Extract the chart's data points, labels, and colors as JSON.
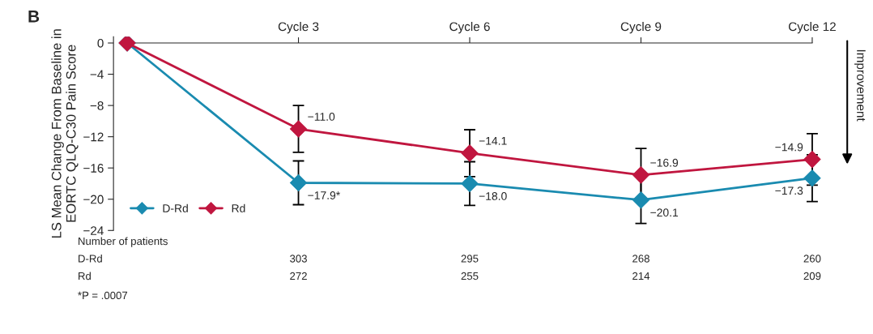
{
  "chart_data": {
    "type": "line",
    "title": "B",
    "ylabel": "LS Mean Change From Baseline in\nEORTC QLQ-C30 Pain Score",
    "categories": [
      null,
      "Cycle 3",
      "Cycle 6",
      "Cycle 9",
      "Cycle 12"
    ],
    "series": [
      {
        "name": "D-Rd",
        "color": "#1a8bb0",
        "values": [
          0,
          -17.9,
          -18.0,
          -20.1,
          -17.3
        ],
        "errors": [
          null,
          2.8,
          2.8,
          3.0,
          3.0
        ],
        "value_labels": [
          null,
          "−17.9*",
          "−18.0",
          "−20.1",
          "−17.3"
        ]
      },
      {
        "name": "Rd",
        "color": "#c0163f",
        "values": [
          0,
          -11.0,
          -14.1,
          -16.9,
          -14.9
        ],
        "errors": [
          null,
          3.0,
          3.0,
          3.4,
          3.3
        ],
        "value_labels": [
          null,
          "−11.0",
          "−14.1",
          "−16.9",
          "−14.9"
        ]
      }
    ],
    "ylim": [
      -24,
      0.8
    ],
    "yticks": [
      0,
      {
        "value": -4,
        "label": "−4"
      },
      {
        "value": -8,
        "label": "−8"
      },
      {
        "value": -12,
        "label": "−12"
      },
      {
        "value": -16,
        "label": "−16"
      },
      {
        "value": -20,
        "label": "−20"
      },
      {
        "value": -24,
        "label": "−24"
      }
    ],
    "marker": "diamond",
    "line_style": "solid",
    "legend": "bottom left",
    "grid": false,
    "annotations": [
      "Number of patients",
      "D-Rd",
      "303",
      "295",
      "268",
      "260",
      "Rd",
      "272",
      "255",
      "214",
      "209",
      "*P = .0007",
      "Improvement"
    ]
  }
}
